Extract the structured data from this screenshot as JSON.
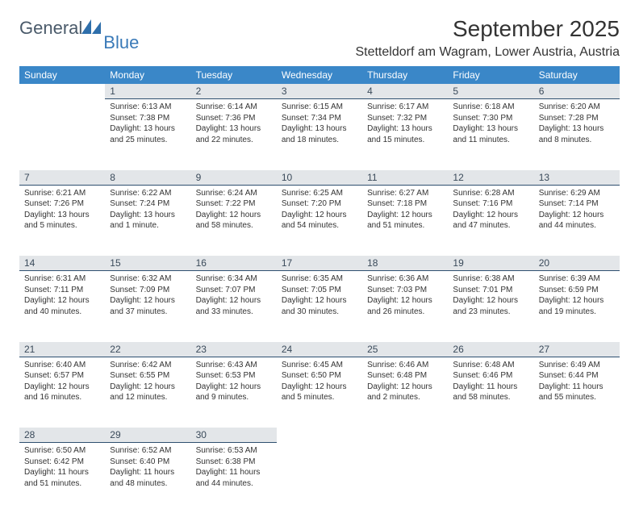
{
  "logo": {
    "general": "General",
    "blue": "Blue"
  },
  "title": "September 2025",
  "location": "Stetteldorf am Wagram, Lower Austria, Austria",
  "colors": {
    "header_bg": "#3a87c8",
    "header_text": "#ffffff",
    "daynum_bg": "#e3e6e9",
    "daynum_border": "#2f5070",
    "body_text": "#333333",
    "logo_gray": "#4a5a6a",
    "logo_blue": "#3a7ab8"
  },
  "typography": {
    "title_fontsize": 28,
    "location_fontsize": 16,
    "header_fontsize": 12,
    "daynum_fontsize": 12,
    "cell_fontsize": 10
  },
  "weekdays": [
    "Sunday",
    "Monday",
    "Tuesday",
    "Wednesday",
    "Thursday",
    "Friday",
    "Saturday"
  ],
  "weeks": [
    [
      null,
      {
        "n": "1",
        "sr": "6:13 AM",
        "ss": "7:38 PM",
        "dl": "13 hours and 25 minutes."
      },
      {
        "n": "2",
        "sr": "6:14 AM",
        "ss": "7:36 PM",
        "dl": "13 hours and 22 minutes."
      },
      {
        "n": "3",
        "sr": "6:15 AM",
        "ss": "7:34 PM",
        "dl": "13 hours and 18 minutes."
      },
      {
        "n": "4",
        "sr": "6:17 AM",
        "ss": "7:32 PM",
        "dl": "13 hours and 15 minutes."
      },
      {
        "n": "5",
        "sr": "6:18 AM",
        "ss": "7:30 PM",
        "dl": "13 hours and 11 minutes."
      },
      {
        "n": "6",
        "sr": "6:20 AM",
        "ss": "7:28 PM",
        "dl": "13 hours and 8 minutes."
      }
    ],
    [
      {
        "n": "7",
        "sr": "6:21 AM",
        "ss": "7:26 PM",
        "dl": "13 hours and 5 minutes."
      },
      {
        "n": "8",
        "sr": "6:22 AM",
        "ss": "7:24 PM",
        "dl": "13 hours and 1 minute."
      },
      {
        "n": "9",
        "sr": "6:24 AM",
        "ss": "7:22 PM",
        "dl": "12 hours and 58 minutes."
      },
      {
        "n": "10",
        "sr": "6:25 AM",
        "ss": "7:20 PM",
        "dl": "12 hours and 54 minutes."
      },
      {
        "n": "11",
        "sr": "6:27 AM",
        "ss": "7:18 PM",
        "dl": "12 hours and 51 minutes."
      },
      {
        "n": "12",
        "sr": "6:28 AM",
        "ss": "7:16 PM",
        "dl": "12 hours and 47 minutes."
      },
      {
        "n": "13",
        "sr": "6:29 AM",
        "ss": "7:14 PM",
        "dl": "12 hours and 44 minutes."
      }
    ],
    [
      {
        "n": "14",
        "sr": "6:31 AM",
        "ss": "7:11 PM",
        "dl": "12 hours and 40 minutes."
      },
      {
        "n": "15",
        "sr": "6:32 AM",
        "ss": "7:09 PM",
        "dl": "12 hours and 37 minutes."
      },
      {
        "n": "16",
        "sr": "6:34 AM",
        "ss": "7:07 PM",
        "dl": "12 hours and 33 minutes."
      },
      {
        "n": "17",
        "sr": "6:35 AM",
        "ss": "7:05 PM",
        "dl": "12 hours and 30 minutes."
      },
      {
        "n": "18",
        "sr": "6:36 AM",
        "ss": "7:03 PM",
        "dl": "12 hours and 26 minutes."
      },
      {
        "n": "19",
        "sr": "6:38 AM",
        "ss": "7:01 PM",
        "dl": "12 hours and 23 minutes."
      },
      {
        "n": "20",
        "sr": "6:39 AM",
        "ss": "6:59 PM",
        "dl": "12 hours and 19 minutes."
      }
    ],
    [
      {
        "n": "21",
        "sr": "6:40 AM",
        "ss": "6:57 PM",
        "dl": "12 hours and 16 minutes."
      },
      {
        "n": "22",
        "sr": "6:42 AM",
        "ss": "6:55 PM",
        "dl": "12 hours and 12 minutes."
      },
      {
        "n": "23",
        "sr": "6:43 AM",
        "ss": "6:53 PM",
        "dl": "12 hours and 9 minutes."
      },
      {
        "n": "24",
        "sr": "6:45 AM",
        "ss": "6:50 PM",
        "dl": "12 hours and 5 minutes."
      },
      {
        "n": "25",
        "sr": "6:46 AM",
        "ss": "6:48 PM",
        "dl": "12 hours and 2 minutes."
      },
      {
        "n": "26",
        "sr": "6:48 AM",
        "ss": "6:46 PM",
        "dl": "11 hours and 58 minutes."
      },
      {
        "n": "27",
        "sr": "6:49 AM",
        "ss": "6:44 PM",
        "dl": "11 hours and 55 minutes."
      }
    ],
    [
      {
        "n": "28",
        "sr": "6:50 AM",
        "ss": "6:42 PM",
        "dl": "11 hours and 51 minutes."
      },
      {
        "n": "29",
        "sr": "6:52 AM",
        "ss": "6:40 PM",
        "dl": "11 hours and 48 minutes."
      },
      {
        "n": "30",
        "sr": "6:53 AM",
        "ss": "6:38 PM",
        "dl": "11 hours and 44 minutes."
      },
      null,
      null,
      null,
      null
    ]
  ],
  "labels": {
    "sunrise": "Sunrise: ",
    "sunset": "Sunset: ",
    "daylight": "Daylight: "
  }
}
